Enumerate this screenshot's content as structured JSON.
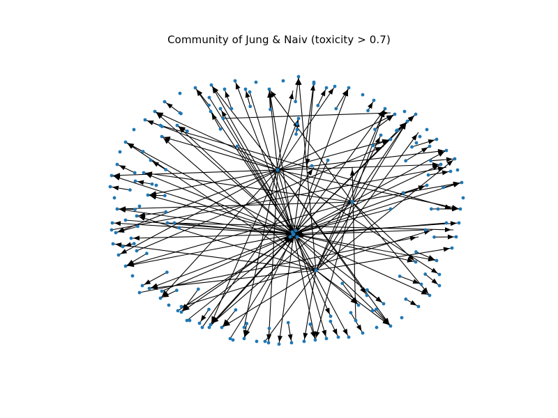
{
  "figure": {
    "title": "Community of Jung & Naiv (toxicity > 0.7)"
  },
  "colors": {
    "node": "#1f77b4",
    "edge": "#000000",
    "background": "#ffffff"
  }
}
